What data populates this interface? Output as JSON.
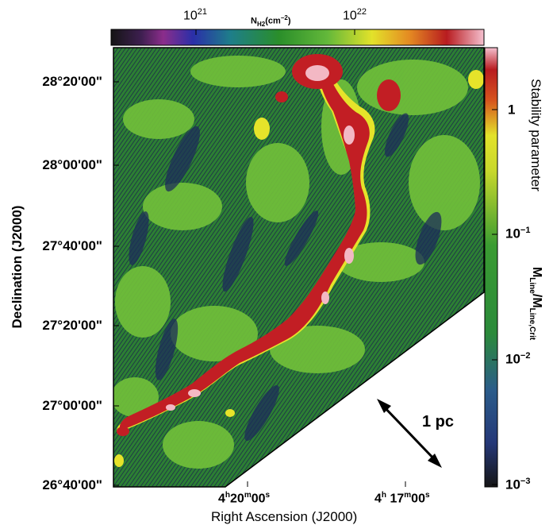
{
  "top_colorbar": {
    "label_main": "N",
    "label_sub": "H2",
    "label_unit": "(cm",
    "label_exp": "−2",
    "label_close": ")",
    "ticks": [
      {
        "base": "10",
        "exp": "21"
      },
      {
        "base": "10",
        "exp": "22"
      }
    ]
  },
  "left_axis": {
    "label": "Declination (J2000)",
    "ticks": [
      "28°20'00\"",
      "28°00'00\"",
      "27°40'00\"",
      "27°20'00\"",
      "27°00'00\"",
      "26°40'00\""
    ]
  },
  "bottom_axis": {
    "label": "Right Ascension (J2000)",
    "ticks": [
      {
        "h": "4",
        "h_sup": "h",
        "m": "20",
        "m_sup": "m",
        "s": "00",
        "s_sup": "s"
      },
      {
        "h": "4",
        "h_sup": "h",
        "m": "17",
        "m_sup": "m",
        "s": "00",
        "s_sup": "s"
      }
    ]
  },
  "right_colorbar": {
    "title": "Stability parameter",
    "ratio_num": "M",
    "ratio_num_sub": "Line",
    "ratio_den": "M",
    "ratio_den_sub": "Line,Crit",
    "ticks": [
      {
        "base": "1",
        "exp": ""
      },
      {
        "base": "10",
        "exp": "−1"
      },
      {
        "base": "10",
        "exp": "−2"
      },
      {
        "base": "10",
        "exp": "−3"
      }
    ]
  },
  "scale_bar": {
    "label": "1 pc"
  },
  "colors": {
    "background_green": "#2f8b2f",
    "light_green": "#7bc83c",
    "dark_blue": "#1d2c5a",
    "yellow": "#e8e82a",
    "red": "#c21e24",
    "pink": "#f3b8c4"
  }
}
